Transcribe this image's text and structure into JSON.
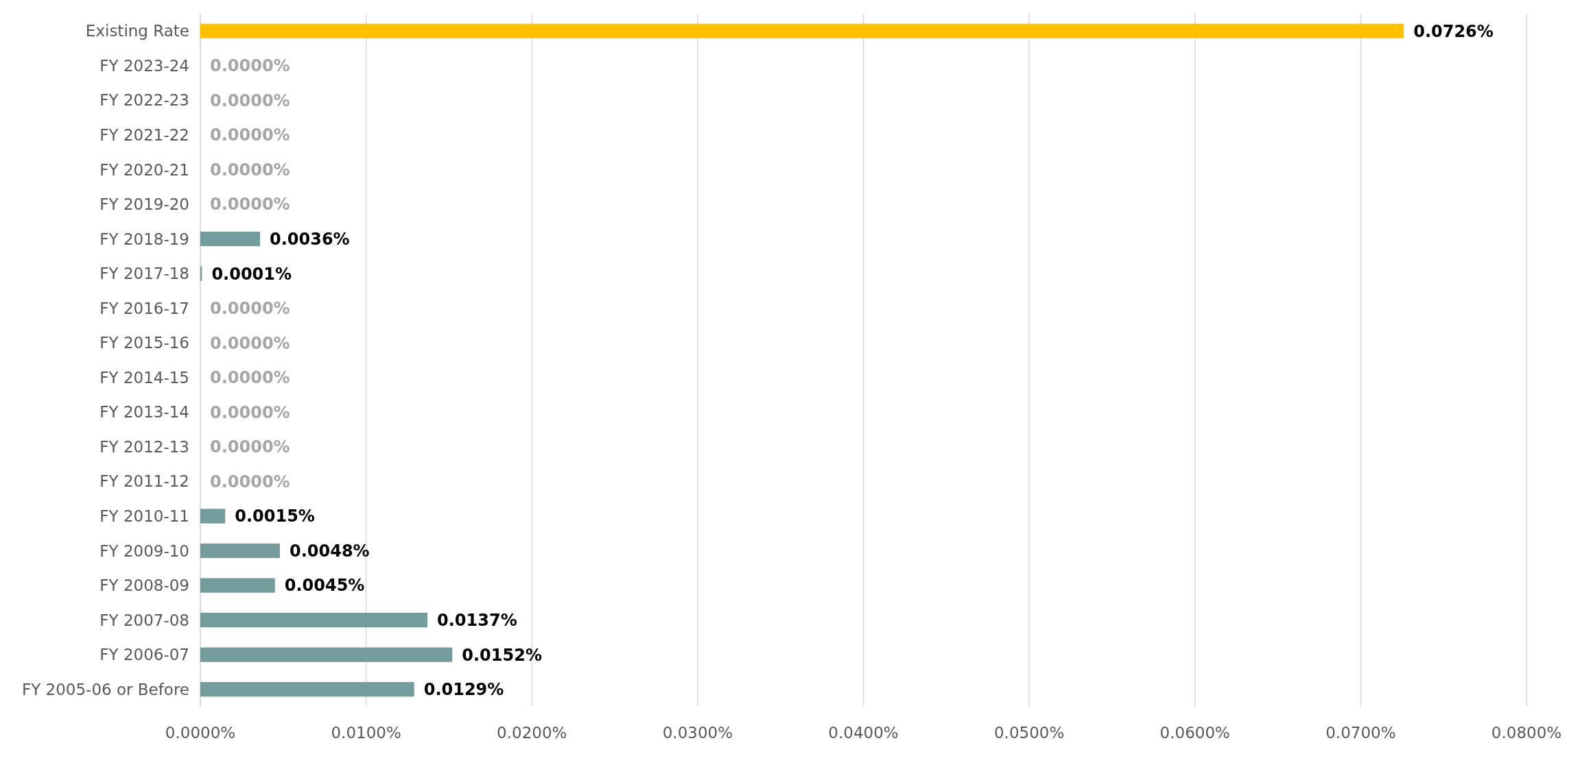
{
  "chart_data": {
    "type": "bar",
    "orientation": "horizontal",
    "categories": [
      "Existing Rate",
      "FY 2023-24",
      "FY 2022-23",
      "FY 2021-22",
      "FY 2020-21",
      "FY 2019-20",
      "FY 2018-19",
      "FY 2017-18",
      "FY 2016-17",
      "FY 2015-16",
      "FY 2014-15",
      "FY 2013-14",
      "FY 2012-13",
      "FY 2011-12",
      "FY 2010-11",
      "FY 2009-10",
      "FY 2008-09",
      "FY 2007-08",
      "FY 2006-07",
      "FY 2005-06 or Before"
    ],
    "values": [
      0.0726,
      0,
      0,
      0,
      0,
      0,
      0.0036,
      0.0001,
      0,
      0,
      0,
      0,
      0,
      0,
      0.0015,
      0.0048,
      0.0045,
      0.0137,
      0.0152,
      0.0129
    ],
    "colors": [
      "#ffc000",
      "#759c9c",
      "#759c9c",
      "#759c9c",
      "#759c9c",
      "#759c9c",
      "#759c9c",
      "#759c9c",
      "#759c9c",
      "#759c9c",
      "#759c9c",
      "#759c9c",
      "#759c9c",
      "#759c9c",
      "#759c9c",
      "#759c9c",
      "#759c9c",
      "#759c9c",
      "#759c9c",
      "#759c9c"
    ],
    "value_labels": [
      "0.0726%",
      "0.0000%",
      "0.0000%",
      "0.0000%",
      "0.0000%",
      "0.0000%",
      "0.0036%",
      "0.0001%",
      "0.0000%",
      "0.0000%",
      "0.0000%",
      "0.0000%",
      "0.0000%",
      "0.0000%",
      "0.0015%",
      "0.0048%",
      "0.0045%",
      "0.0137%",
      "0.0152%",
      "0.0129%"
    ],
    "xlim": [
      0,
      0.08
    ],
    "xticks": [
      {
        "value": 0,
        "label": "0.0000%"
      },
      {
        "value": 0.01,
        "label": "0.0100%"
      },
      {
        "value": 0.02,
        "label": "0.0200%"
      },
      {
        "value": 0.03,
        "label": "0.0300%"
      },
      {
        "value": 0.04,
        "label": "0.0400%"
      },
      {
        "value": 0.05,
        "label": "0.0500%"
      },
      {
        "value": 0.06,
        "label": "0.0600%"
      },
      {
        "value": 0.07,
        "label": "0.0700%"
      },
      {
        "value": 0.08,
        "label": "0.0800%"
      }
    ],
    "grid": "x"
  }
}
